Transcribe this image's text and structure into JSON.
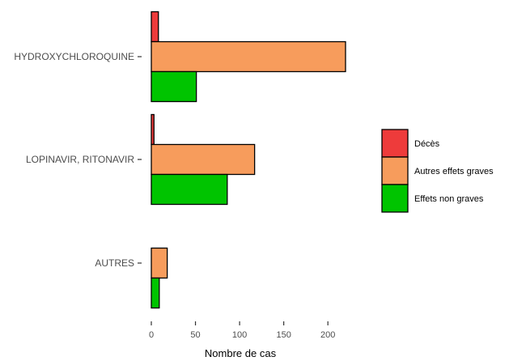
{
  "chart_data": {
    "type": "bar",
    "orientation": "horizontal",
    "categories": [
      "HYDROXYCHLOROQUINE",
      "LOPINAVIR, RITONAVIR",
      "AUTRES"
    ],
    "series": [
      {
        "name": "Décès",
        "color": "#ee3b3b",
        "values": [
          8,
          3,
          0
        ]
      },
      {
        "name": "Autres effets graves",
        "color": "#f79c5c",
        "values": [
          220,
          117,
          18
        ]
      },
      {
        "name": "Effets non graves",
        "color": "#00c400",
        "values": [
          51,
          86,
          9
        ]
      }
    ],
    "xlabel": "Nombre de cas",
    "ylabel": "",
    "xlim": [
      0,
      225
    ],
    "xticks": [
      0,
      50,
      100,
      150,
      200
    ],
    "grid": false,
    "legend_position": "right"
  }
}
